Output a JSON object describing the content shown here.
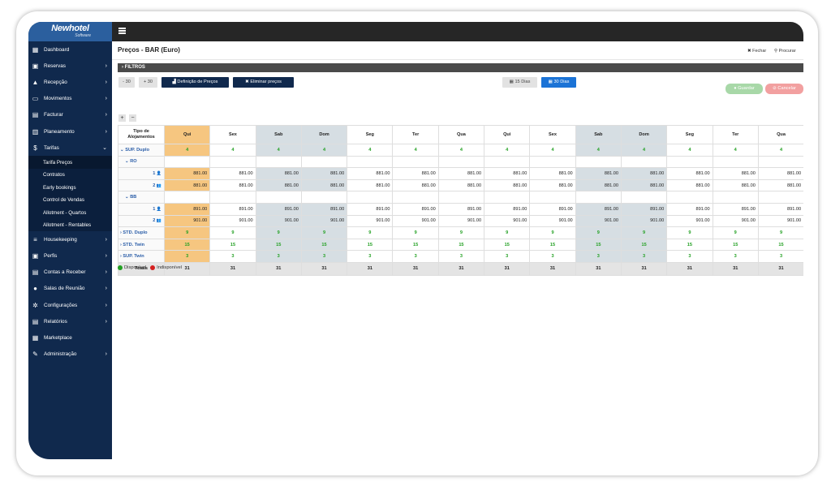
{
  "app": {
    "brand": "Newhotel",
    "brand_sub": "Software"
  },
  "sidebar": {
    "items": [
      {
        "label": "Dashboard",
        "icon": "dashboard-icon",
        "chevron": false
      },
      {
        "label": "Reservas",
        "icon": "calendar-icon",
        "chevron": true
      },
      {
        "label": "Recepção",
        "icon": "bell-icon",
        "chevron": true
      },
      {
        "label": "Movimentos",
        "icon": "movements-icon",
        "chevron": true
      },
      {
        "label": "Facturar",
        "icon": "invoice-icon",
        "chevron": true
      },
      {
        "label": "Planeamento",
        "icon": "planning-icon",
        "chevron": true
      },
      {
        "label": "Tarifas",
        "icon": "dollar-icon",
        "chevron": true
      }
    ],
    "sub_items": [
      "Tarifa Preços",
      "Contratos",
      "Early bookings",
      "Control de Vendas",
      "Allotment - Quartos",
      "Allotment - Rentables"
    ],
    "items_after": [
      {
        "label": "Housekeeping",
        "icon": "housekeeping-icon",
        "chevron": true
      },
      {
        "label": "Perfis",
        "icon": "profile-icon",
        "chevron": true
      },
      {
        "label": "Contas a Receber",
        "icon": "accounts-icon",
        "chevron": true
      },
      {
        "label": "Salas de Reunião",
        "icon": "meeting-icon",
        "chevron": true
      },
      {
        "label": "Configurações",
        "icon": "gear-icon",
        "chevron": true
      },
      {
        "label": "Relatórios",
        "icon": "report-icon",
        "chevron": true
      },
      {
        "label": "Marketplace",
        "icon": "marketplace-icon",
        "chevron": false
      },
      {
        "label": "Administração",
        "icon": "wrench-icon",
        "chevron": true
      }
    ]
  },
  "header": {
    "title": "Preços - BAR (Euro)",
    "close_label": "Fechar",
    "search_label": "Procurar"
  },
  "filters": {
    "label": "FILTROS"
  },
  "toolbar": {
    "minus30": "- 30",
    "plus30": "+ 30",
    "define_prices": "Definição de Preços",
    "delete_prices": "Eliminar preços",
    "days15": "15 Dias",
    "days30": "30 Dias",
    "save": "Guardar",
    "cancel": "Cancelar",
    "expand": "+",
    "collapse": "−"
  },
  "grid": {
    "corner_label_line1": "Tipo de",
    "corner_label_line2": "Alojamentos",
    "days": [
      "Qui",
      "Sex",
      "Sab",
      "Dom",
      "Seg",
      "Ter",
      "Qua",
      "Qui",
      "Sex",
      "Sab",
      "Dom",
      "Seg",
      "Ter",
      "Qua"
    ],
    "rows": {
      "sup_duplo": {
        "label": "SUP. Duplo",
        "values": [
          "4",
          "4",
          "4",
          "4",
          "4",
          "4",
          "4",
          "4",
          "4",
          "4",
          "4",
          "4",
          "4",
          "4"
        ]
      },
      "ro": {
        "label": "RO"
      },
      "ro_1": {
        "label": "1",
        "values": [
          "881.00",
          "881.00",
          "881.00",
          "881.00",
          "881.00",
          "881.00",
          "881.00",
          "881.00",
          "881.00",
          "881.00",
          "881.00",
          "881.00",
          "881.00",
          "881.00"
        ]
      },
      "ro_2": {
        "label": "2",
        "values": [
          "881.00",
          "881.00",
          "881.00",
          "881.00",
          "881.00",
          "881.00",
          "881.00",
          "881.00",
          "881.00",
          "881.00",
          "881.00",
          "881.00",
          "881.00",
          "881.00"
        ]
      },
      "bb": {
        "label": "BB"
      },
      "bb_1": {
        "label": "1",
        "values": [
          "891.00",
          "891.00",
          "891.00",
          "891.00",
          "891.00",
          "891.00",
          "891.00",
          "891.00",
          "891.00",
          "891.00",
          "891.00",
          "891.00",
          "891.00",
          "891.00"
        ]
      },
      "bb_2": {
        "label": "2",
        "values": [
          "901.00",
          "901.00",
          "901.00",
          "901.00",
          "901.00",
          "901.00",
          "901.00",
          "901.00",
          "901.00",
          "901.00",
          "901.00",
          "901.00",
          "901.00",
          "901.00"
        ]
      },
      "std_duplo": {
        "label": "STD. Duplo",
        "values": [
          "9",
          "9",
          "9",
          "9",
          "9",
          "9",
          "9",
          "9",
          "9",
          "9",
          "9",
          "9",
          "9",
          "9"
        ]
      },
      "std_twin": {
        "label": "STD. Twin",
        "values": [
          "15",
          "15",
          "15",
          "15",
          "15",
          "15",
          "15",
          "15",
          "15",
          "15",
          "15",
          "15",
          "15",
          "15"
        ]
      },
      "sup_twin": {
        "label": "SUP. Twin",
        "values": [
          "3",
          "3",
          "3",
          "3",
          "3",
          "3",
          "3",
          "3",
          "3",
          "3",
          "3",
          "3",
          "3",
          "3"
        ]
      },
      "totals": {
        "label": "Totais",
        "values": [
          "31",
          "31",
          "31",
          "31",
          "31",
          "31",
          "31",
          "31",
          "31",
          "31",
          "31",
          "31",
          "31",
          "31"
        ]
      }
    }
  },
  "legend": {
    "available": "Disponível",
    "unavailable": "Indisponível"
  },
  "colors": {
    "sidebar": "#10294d",
    "highlight": "#f6c680",
    "weekend": "#d6dee3",
    "available": "#22a022",
    "primary": "#1b73d6"
  }
}
